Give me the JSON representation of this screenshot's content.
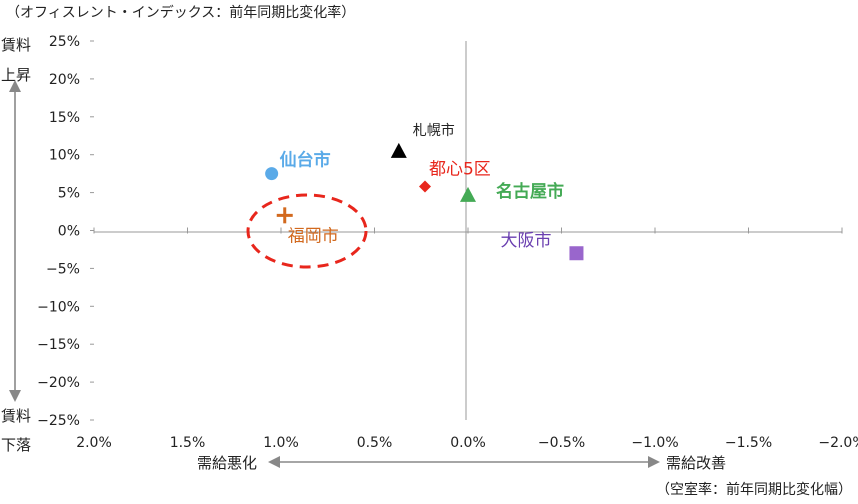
{
  "chart_data": {
    "type": "scatter",
    "title": "",
    "y_unit_label": "（オフィスレント・インデックス：前年同期比変化率）",
    "x_unit_label": "（空室率：前年同期比変化幅）",
    "y_top_label": [
      "賃料",
      "上昇"
    ],
    "y_bottom_label": [
      "賃料",
      "下落"
    ],
    "x_left_label": "需給悪化",
    "x_right_label": "需給改善",
    "x_ticks": [
      "2.0%",
      "1.5%",
      "1.0%",
      "0.5%",
      "0.0%",
      "−0.5%",
      "−1.0%",
      "−1.5%",
      "−2.0%"
    ],
    "y_ticks": [
      "25%",
      "20%",
      "15%",
      "10%",
      "5%",
      "0%",
      "−5%",
      "−10%",
      "−15%",
      "−20%",
      "−25%"
    ],
    "xlim": [
      2.0,
      -2.0
    ],
    "ylim": [
      -25,
      25
    ],
    "x_reversed": true,
    "grid": false,
    "points": [
      {
        "label": "仙台市",
        "x": 1.05,
        "y": 7.5,
        "marker": "circle",
        "color": "#5aaae8"
      },
      {
        "label": "札幌市",
        "x": 0.37,
        "y": 10.5,
        "marker": "triangle",
        "color": "#000000"
      },
      {
        "label": "都心5区",
        "x": 0.23,
        "y": 5.8,
        "marker": "diamond",
        "color": "#e8261c"
      },
      {
        "label": "名古屋市",
        "x": 0.0,
        "y": 4.7,
        "marker": "triangle",
        "color": "#44aa55"
      },
      {
        "label": "福岡市",
        "x": 0.98,
        "y": 2.0,
        "marker": "plus",
        "color": "#d2691e"
      },
      {
        "label": "大阪市",
        "x": -0.58,
        "y": -3.0,
        "marker": "square",
        "color": "#9966cc"
      }
    ],
    "highlight": {
      "target": "福岡市",
      "shape": "dashed-ellipse",
      "color": "#e8261c"
    }
  }
}
